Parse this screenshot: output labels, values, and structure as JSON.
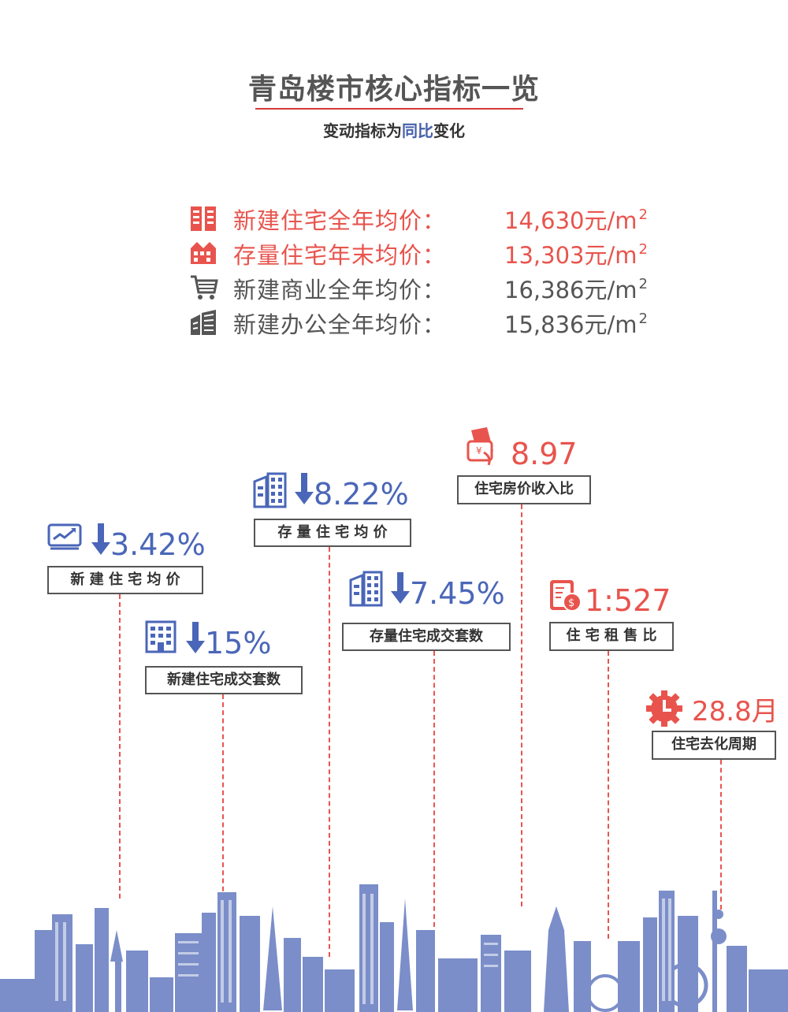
{
  "header": {
    "title": "青岛楼市核心指标一览",
    "subtitle_prefix": "变动指标为",
    "subtitle_highlight": "同比",
    "subtitle_suffix": "变化"
  },
  "metrics": [
    {
      "label": "新建住宅全年均价：",
      "value": "14,630元/m",
      "sup": "2",
      "icon": "building-icon",
      "color": "#e8544d"
    },
    {
      "label": "存量住宅年末均价：",
      "value": "13,303元/m",
      "sup": "2",
      "icon": "house-row-icon",
      "color": "#e8544d"
    },
    {
      "label": "新建商业全年均价：",
      "value": "16,386元/m",
      "sup": "2",
      "icon": "shopping-cart-icon",
      "color": "#555555"
    },
    {
      "label": "新建办公全年均价：",
      "value": "15,836元/m",
      "sup": "2",
      "icon": "office-building-icon",
      "color": "#555555"
    }
  ],
  "indicators": {
    "new_res_price": {
      "value": "3.42%",
      "label": "新 建 住 宅 均 价",
      "icon": "trend-chart-icon",
      "direction": "down"
    },
    "stock_res_price": {
      "value": "8.22%",
      "label": "存 量 住 宅 均 价",
      "icon": "buildings-icon",
      "direction": "down"
    },
    "new_res_volume": {
      "value": "15%",
      "label": "新建住宅成交套数",
      "icon": "apartment-icon",
      "direction": "down"
    },
    "stock_res_volume": {
      "value": "7.45%",
      "label": "存量住宅成交套数",
      "icon": "buildings-icon",
      "direction": "down"
    },
    "price_income": {
      "value": "8.97",
      "label": "住宅房价收入比",
      "icon": "money-card-icon"
    },
    "rent_sale": {
      "value": "1:527",
      "label": "住 宅 租 售 比",
      "icon": "yen-book-icon"
    },
    "destock_cycle": {
      "value": "28.8月",
      "label": "住宅去化周期",
      "icon": "clock-gear-icon"
    }
  },
  "colors": {
    "red": "#e8544d",
    "blue": "#4a66b8",
    "gray": "#555555",
    "skyline": "#7b8ec9"
  }
}
